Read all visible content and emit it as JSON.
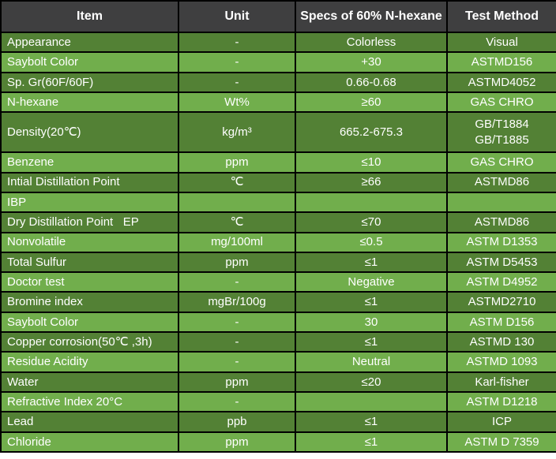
{
  "colors": {
    "header_bg": "#3f3f40",
    "row_dark": "#538135",
    "row_light": "#71ae4c",
    "border": "#000000",
    "text": "#ffffff"
  },
  "table": {
    "headers": [
      "Item",
      "Unit",
      "Specs of 60% N-hexane",
      "Test Method"
    ],
    "rows": [
      {
        "item": "Appearance",
        "unit": "-",
        "spec": "Colorless",
        "method": "Visual"
      },
      {
        "item": "Saybolt Color",
        "unit": "-",
        "spec": "+30",
        "method": "ASTMD156"
      },
      {
        "item": "Sp. Gr(60F/60F)",
        "unit": "-",
        "spec": "0.66-0.68",
        "method": "ASTMD4052"
      },
      {
        "item": "N-hexane",
        "unit": "Wt%",
        "spec": "≥60",
        "method": "GAS CHRO"
      },
      {
        "item": "Density(20℃)",
        "unit": "kg/m³",
        "spec": "665.2-675.3",
        "method": "GB/T1884\nGB/T1885",
        "tall": true
      },
      {
        "item": "Benzene",
        "unit": "ppm",
        "spec": "≤10",
        "method": "GAS CHRO"
      },
      {
        "item": "Intial Distillation Point",
        "unit": "℃",
        "spec": "≥66",
        "method": "ASTMD86"
      },
      {
        "item": "IBP",
        "unit": "",
        "spec": "",
        "method": ""
      },
      {
        "item": "Dry Distillation Point   EP",
        "unit": "℃",
        "spec": "≤70",
        "method": "ASTMD86"
      },
      {
        "item": "Nonvolatile",
        "unit": "mg/100ml",
        "spec": "≤0.5",
        "method": "ASTM D1353"
      },
      {
        "item": "Total Sulfur",
        "unit": "ppm",
        "spec": "≤1",
        "method": "ASTM D5453"
      },
      {
        "item": "Doctor test",
        "unit": "-",
        "spec": "Negative",
        "method": "ASTM D4952"
      },
      {
        "item": "Bromine index",
        "unit": "mgBr/100g",
        "spec": "≤1",
        "method": "ASTMD2710"
      },
      {
        "item": "Saybolt Color",
        "unit": "-",
        "spec": "30",
        "method": "ASTM D156"
      },
      {
        "item": "Copper corrosion(50℃ ,3h)",
        "unit": "-",
        "spec": "≤1",
        "method": "ASTMD 130"
      },
      {
        "item": "Residue Acidity",
        "unit": "-",
        "spec": "Neutral",
        "method": "ASTMD 1093"
      },
      {
        "item": "Water",
        "unit": "ppm",
        "spec": "≤20",
        "method": "Karl-fisher"
      },
      {
        "item": "Refractive Index 20°C",
        "unit": "-",
        "spec": "",
        "method": "ASTM D1218"
      },
      {
        "item": "Lead",
        "unit": "ppb",
        "spec": "≤1",
        "method": "ICP"
      },
      {
        "item": "Chloride",
        "unit": "ppm",
        "spec": "≤1",
        "method": "ASTM D 7359"
      }
    ]
  }
}
